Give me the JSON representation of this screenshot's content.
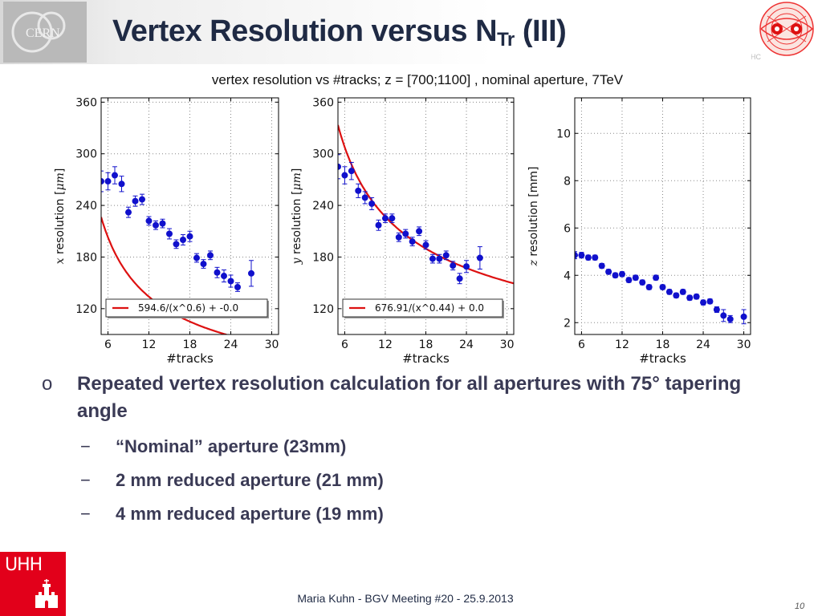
{
  "slide": {
    "title_main": "Vertex Resolution versus N",
    "title_sub": "Tr",
    "title_end": " (III)",
    "caption": "vertex resolution vs #tracks; z = [700;1100] , nominal aperture, 7TeV",
    "lhc_label": "LHC",
    "cern_label": "CERN",
    "uhh_label": "UHH",
    "footer": "Maria Kuhn - BGV Meeting #20 - 25.9.2013",
    "page_number": "10",
    "bullets": {
      "marker": "o",
      "main": "Repeated vertex resolution calculation for all apertures with 75° tapering angle",
      "sub_marker": "−",
      "sub": [
        "“Nominal” aperture (23mm)",
        "2 mm reduced aperture (21 mm)",
        "4 mm reduced aperture (19 mm)"
      ]
    }
  },
  "colors": {
    "data": "#1010cc",
    "fit": "#dd1111",
    "title": "#1f2a44",
    "text": "#3a3a55",
    "uhh": "#e2001a"
  },
  "chart_data": [
    {
      "type": "scatter",
      "xlabel": "#tracks",
      "ylabel_var": "x",
      "ylabel_text": " resolution [",
      "ylabel_unit": "μm",
      "ylabel_close": "]",
      "xlim": [
        5,
        31
      ],
      "ylim": [
        90,
        365
      ],
      "xticks": [
        6,
        12,
        18,
        24,
        30
      ],
      "yticks": [
        120,
        180,
        240,
        300,
        360
      ],
      "grid": true,
      "legend": "bottom",
      "series": [
        {
          "name": "data",
          "x": [
            5,
            6,
            7,
            8,
            9,
            10,
            11,
            12,
            13,
            14,
            15,
            16,
            17,
            18,
            19,
            20,
            21,
            22,
            23,
            24,
            25,
            27
          ],
          "y": [
            268,
            268,
            275,
            265,
            232,
            245,
            247,
            222,
            217,
            219,
            207,
            195,
            200,
            204,
            179,
            172,
            182,
            162,
            158,
            152,
            145,
            161
          ],
          "yerr": [
            12,
            10,
            10,
            9,
            6,
            6,
            6,
            5,
            5,
            5,
            6,
            5,
            6,
            6,
            5,
            5,
            5,
            6,
            7,
            7,
            5,
            15
          ]
        }
      ],
      "fit": {
        "name": "594.6/(x^0.6) + -0.0",
        "a": 594.6,
        "b": 0.6,
        "c": 0.0
      }
    },
    {
      "type": "scatter",
      "xlabel": "#tracks",
      "ylabel_var": "y",
      "ylabel_text": " resolution [",
      "ylabel_unit": "μm",
      "ylabel_close": "]",
      "xlim": [
        5,
        31
      ],
      "ylim": [
        90,
        365
      ],
      "xticks": [
        6,
        12,
        18,
        24,
        30
      ],
      "yticks": [
        120,
        180,
        240,
        300,
        360
      ],
      "grid": true,
      "legend": "bottom",
      "series": [
        {
          "name": "data",
          "x": [
            5,
            6,
            7,
            8,
            9,
            10,
            11,
            12,
            13,
            14,
            15,
            16,
            17,
            18,
            19,
            20,
            21,
            22,
            23,
            24,
            26
          ],
          "y": [
            285,
            275,
            280,
            257,
            249,
            242,
            217,
            225,
            225,
            203,
            207,
            198,
            210,
            194,
            178,
            178,
            182,
            170,
            155,
            169,
            179
          ],
          "yerr": [
            14,
            10,
            10,
            8,
            7,
            7,
            6,
            5,
            5,
            5,
            5,
            5,
            5,
            5,
            5,
            5,
            5,
            5,
            6,
            7,
            13
          ]
        }
      ],
      "fit": {
        "name": "676.91/(x^0.44) + 0.0",
        "a": 676.91,
        "b": 0.44,
        "c": 0.0
      }
    },
    {
      "type": "scatter",
      "xlabel": "#tracks",
      "ylabel_var": "z",
      "ylabel_text": " resolution [",
      "ylabel_unit": "mm",
      "ylabel_close": "]",
      "xlim": [
        5,
        31
      ],
      "ylim": [
        1.5,
        11.5
      ],
      "xticks": [
        6,
        12,
        18,
        24,
        30
      ],
      "yticks": [
        2,
        4,
        6,
        8,
        10
      ],
      "grid": true,
      "series": [
        {
          "name": "data",
          "x": [
            5,
            6,
            7,
            8,
            9,
            10,
            11,
            12,
            13,
            14,
            15,
            16,
            17,
            18,
            19,
            20,
            21,
            22,
            23,
            24,
            25,
            26,
            27,
            28,
            30
          ],
          "y": [
            4.85,
            4.85,
            4.75,
            4.75,
            4.4,
            4.15,
            4.0,
            4.05,
            3.8,
            3.9,
            3.7,
            3.5,
            3.9,
            3.5,
            3.3,
            3.15,
            3.3,
            3.05,
            3.1,
            2.85,
            2.9,
            2.55,
            2.3,
            2.15,
            2.25
          ],
          "yerr": [
            0.15,
            0.12,
            0.1,
            0.1,
            0.1,
            0.1,
            0.1,
            0.1,
            0.1,
            0.1,
            0.1,
            0.1,
            0.1,
            0.1,
            0.1,
            0.1,
            0.1,
            0.1,
            0.1,
            0.1,
            0.1,
            0.12,
            0.25,
            0.15,
            0.3
          ]
        }
      ]
    }
  ]
}
